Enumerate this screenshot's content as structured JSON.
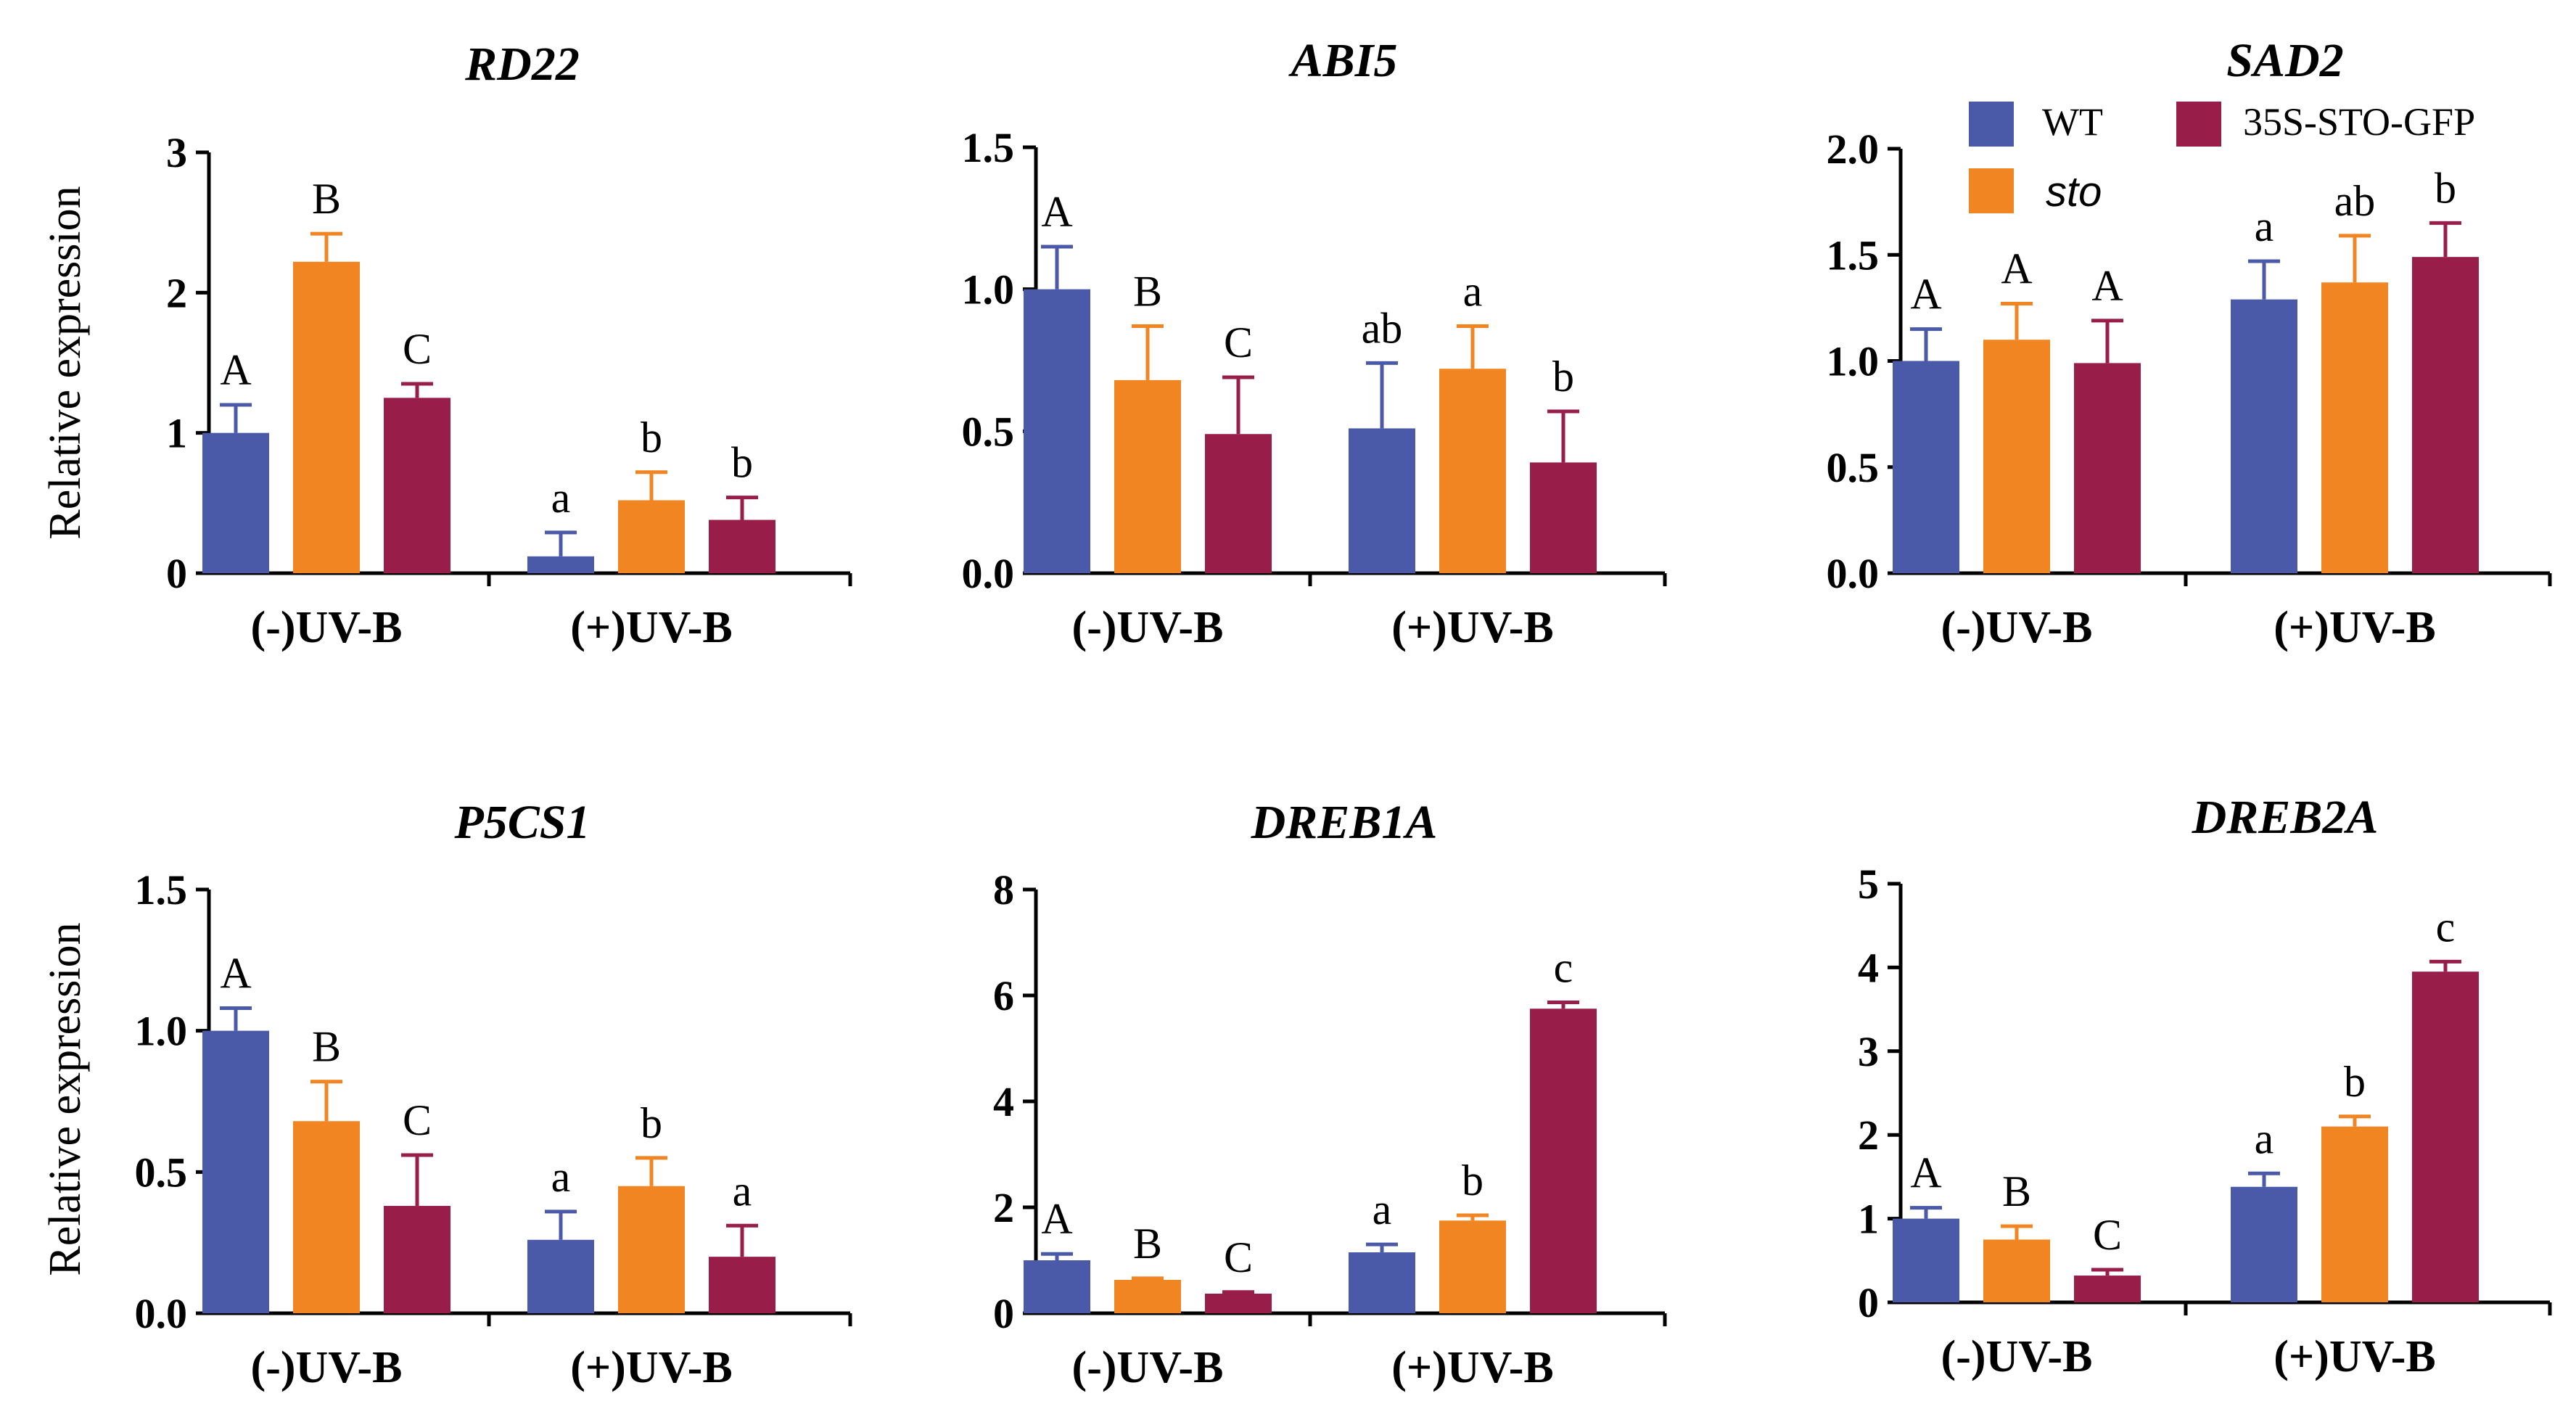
{
  "chart_data": [
    {
      "type": "bar",
      "title": "RD22",
      "ylabel": "Relative expression",
      "ylim": [
        0,
        3
      ],
      "yticks": [
        "0",
        "1",
        "2",
        "3"
      ],
      "categories": [
        "(-)UV-B",
        "(+)UV-B"
      ],
      "series": [
        {
          "name": "WT",
          "values": [
            1.0,
            0.12
          ],
          "errors": [
            0.2,
            0.17
          ],
          "labels": [
            "A",
            "a"
          ]
        },
        {
          "name": "sto",
          "values": [
            2.22,
            0.52
          ],
          "errors": [
            0.2,
            0.2
          ],
          "labels": [
            "B",
            "b"
          ]
        },
        {
          "name": "35S-STO-GFP",
          "values": [
            1.25,
            0.38
          ],
          "errors": [
            0.1,
            0.16
          ],
          "labels": [
            "C",
            "b"
          ]
        }
      ]
    },
    {
      "type": "bar",
      "title": "ABI5",
      "ylabel": "",
      "ylim": [
        0,
        1.5
      ],
      "yticks": [
        "0.0",
        "0.5",
        "1.0",
        "1.5"
      ],
      "categories": [
        "(-)UV-B",
        "(+)UV-B"
      ],
      "series": [
        {
          "name": "WT",
          "values": [
            1.0,
            0.51
          ],
          "errors": [
            0.15,
            0.23
          ],
          "labels": [
            "A",
            "ab"
          ]
        },
        {
          "name": "sto",
          "values": [
            0.68,
            0.72
          ],
          "errors": [
            0.19,
            0.15
          ],
          "labels": [
            "B",
            "a"
          ]
        },
        {
          "name": "35S-STO-GFP",
          "values": [
            0.49,
            0.39
          ],
          "errors": [
            0.2,
            0.18
          ],
          "labels": [
            "C",
            "b"
          ]
        }
      ]
    },
    {
      "type": "bar",
      "title": "SAD2",
      "ylabel": "",
      "ylim": [
        0,
        2.0
      ],
      "yticks": [
        "0.0",
        "0.5",
        "1.0",
        "1.5",
        "2.0"
      ],
      "categories": [
        "(-)UV-B",
        "(+)UV-B"
      ],
      "series": [
        {
          "name": "WT",
          "values": [
            1.0,
            1.29
          ],
          "errors": [
            0.15,
            0.18
          ],
          "labels": [
            "A",
            "a"
          ]
        },
        {
          "name": "sto",
          "values": [
            1.1,
            1.37
          ],
          "errors": [
            0.17,
            0.22
          ],
          "labels": [
            "A",
            "ab"
          ]
        },
        {
          "name": "35S-STO-GFP",
          "values": [
            0.99,
            1.49
          ],
          "errors": [
            0.2,
            0.16
          ],
          "labels": [
            "A",
            "b"
          ]
        }
      ]
    },
    {
      "type": "bar",
      "title": "P5CS1",
      "ylabel": "Relative expression",
      "ylim": [
        0,
        1.5
      ],
      "yticks": [
        "0.0",
        "0.5",
        "1.0",
        "1.5"
      ],
      "categories": [
        "(-)UV-B",
        "(+)UV-B"
      ],
      "series": [
        {
          "name": "WT",
          "values": [
            1.0,
            0.26
          ],
          "errors": [
            0.08,
            0.1
          ],
          "labels": [
            "A",
            "a"
          ]
        },
        {
          "name": "sto",
          "values": [
            0.68,
            0.45
          ],
          "errors": [
            0.14,
            0.1
          ],
          "labels": [
            "B",
            "b"
          ]
        },
        {
          "name": "35S-STO-GFP",
          "values": [
            0.38,
            0.2
          ],
          "errors": [
            0.18,
            0.11
          ],
          "labels": [
            "C",
            "a"
          ]
        }
      ]
    },
    {
      "type": "bar",
      "title": "DREB1A",
      "ylabel": "",
      "ylim": [
        0,
        8
      ],
      "yticks": [
        "0",
        "2",
        "4",
        "6",
        "8"
      ],
      "categories": [
        "(-)UV-B",
        "(+)UV-B"
      ],
      "series": [
        {
          "name": "WT",
          "values": [
            1.0,
            1.15
          ],
          "errors": [
            0.12,
            0.15
          ],
          "labels": [
            "A",
            "a"
          ]
        },
        {
          "name": "sto",
          "values": [
            0.63,
            1.75
          ],
          "errors": [
            0.03,
            0.1
          ],
          "labels": [
            "B",
            "b"
          ]
        },
        {
          "name": "35S-STO-GFP",
          "values": [
            0.37,
            5.75
          ],
          "errors": [
            0.03,
            0.12
          ],
          "labels": [
            "C",
            "c"
          ]
        }
      ]
    },
    {
      "type": "bar",
      "title": "DREB2A",
      "ylabel": "",
      "ylim": [
        0,
        5
      ],
      "yticks": [
        "0",
        "1",
        "2",
        "3",
        "4",
        "5"
      ],
      "categories": [
        "(-)UV-B",
        "(+)UV-B"
      ],
      "series": [
        {
          "name": "WT",
          "values": [
            1.0,
            1.38
          ],
          "errors": [
            0.13,
            0.16
          ],
          "labels": [
            "A",
            "a"
          ]
        },
        {
          "name": "sto",
          "values": [
            0.75,
            2.1
          ],
          "errors": [
            0.16,
            0.12
          ],
          "labels": [
            "B",
            "b"
          ]
        },
        {
          "name": "35S-STO-GFP",
          "values": [
            0.32,
            3.95
          ],
          "errors": [
            0.07,
            0.12
          ],
          "labels": [
            "C",
            "c"
          ]
        }
      ]
    }
  ],
  "legend": {
    "placement": "top-right",
    "items": [
      {
        "name": "WT",
        "color": "#4a5aa8",
        "italic": false
      },
      {
        "name": "35S-STO-GFP",
        "color": "#981d48",
        "italic": false
      },
      {
        "name": "sto",
        "color": "#f08521",
        "italic": true
      }
    ]
  },
  "colors": [
    "#4a5aa8",
    "#f08521",
    "#981d48"
  ]
}
